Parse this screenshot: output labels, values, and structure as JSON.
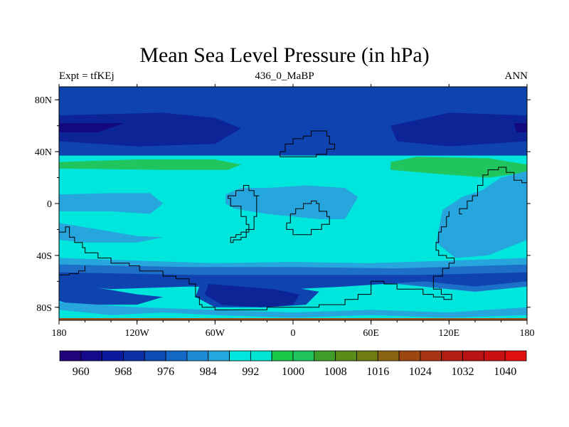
{
  "title": "Mean Sea Level Pressure (in hPa)",
  "left_label": "Expt = tfKEj",
  "center_label": "436_0_MaBP",
  "right_label": "ANN",
  "axes": {
    "x_ticks": [
      {
        "value": -180,
        "label": "180"
      },
      {
        "value": -120,
        "label": "120W"
      },
      {
        "value": -60,
        "label": "60W"
      },
      {
        "value": 0,
        "label": "0"
      },
      {
        "value": 60,
        "label": "60E"
      },
      {
        "value": 120,
        "label": "120E"
      },
      {
        "value": 180,
        "label": "180"
      }
    ],
    "y_ticks": [
      {
        "value": 80,
        "label": "80N"
      },
      {
        "value": 40,
        "label": "40N"
      },
      {
        "value": 0,
        "label": "0"
      },
      {
        "value": -40,
        "label": "40S"
      },
      {
        "value": -80,
        "label": "80S"
      }
    ],
    "lon_range": [
      -180,
      180
    ],
    "lat_range": [
      -90,
      90
    ]
  },
  "colorbar": {
    "colors": [
      "#21047a",
      "#140a8c",
      "#0a1a9a",
      "#0b30a6",
      "#0f4bb5",
      "#1268c4",
      "#1d8bd4",
      "#23a7dc",
      "#00e5dc",
      "#00e4d2",
      "#18c848",
      "#22c45e",
      "#3f9c28",
      "#5a8c1a",
      "#6f7c12",
      "#8a6410",
      "#9c4610",
      "#a83414",
      "#b01e14",
      "#b81414",
      "#c81010",
      "#e01010"
    ],
    "labels": [
      "960",
      "968",
      "976",
      "984",
      "992",
      "1000",
      "1008",
      "1016",
      "1024",
      "1032",
      "1040"
    ]
  },
  "field_colors": {
    "c976": "#0c2496",
    "c984": "#0f44b0",
    "c992": "#1e6fc8",
    "c1000a": "#26a6dc",
    "c1000b": "#00e5dc",
    "c1008": "#21c55d",
    "c1016": "#5a8c1a",
    "top_band": "#21c55d",
    "bottom_band": "#a0521e"
  },
  "regions": [
    {
      "name": "north-low-band",
      "level": "984",
      "polys": [
        [
          [
            -180,
            90
          ],
          [
            180,
            90
          ],
          [
            180,
            35
          ],
          [
            -180,
            35
          ]
        ]
      ]
    },
    {
      "name": "north-low-west",
      "level": "976",
      "polys": [
        [
          [
            -180,
            68
          ],
          [
            -100,
            70
          ],
          [
            -60,
            66
          ],
          [
            -40,
            58
          ],
          [
            -60,
            46
          ],
          [
            -120,
            44
          ],
          [
            -180,
            48
          ]
        ]
      ]
    },
    {
      "name": "north-low-east",
      "level": "976",
      "polys": [
        [
          [
            75,
            60
          ],
          [
            120,
            70
          ],
          [
            180,
            68
          ],
          [
            180,
            48
          ],
          [
            120,
            44
          ],
          [
            80,
            48
          ]
        ]
      ]
    },
    {
      "name": "north-core-west",
      "level": "968",
      "polys": [
        [
          [
            -180,
            62
          ],
          [
            -130,
            62
          ],
          [
            -150,
            55
          ],
          [
            -180,
            55
          ]
        ]
      ]
    },
    {
      "name": "north-core-east",
      "level": "968",
      "polys": [
        [
          [
            170,
            62
          ],
          [
            180,
            62
          ],
          [
            180,
            55
          ],
          [
            172,
            55
          ]
        ]
      ]
    },
    {
      "name": "mid-band",
      "level": "1000b",
      "polys": [
        [
          [
            -180,
            37
          ],
          [
            180,
            37
          ],
          [
            180,
            -50
          ],
          [
            -180,
            -50
          ]
        ]
      ]
    },
    {
      "name": "subtrop-north-west",
      "level": "1008",
      "polys": [
        [
          [
            -180,
            32
          ],
          [
            -120,
            34
          ],
          [
            -60,
            34
          ],
          [
            -40,
            30
          ],
          [
            -50,
            26
          ],
          [
            -100,
            26
          ],
          [
            -180,
            27
          ]
        ]
      ]
    },
    {
      "name": "subtrop-north-east",
      "level": "1008",
      "polys": [
        [
          [
            75,
            32
          ],
          [
            95,
            36
          ],
          [
            150,
            35
          ],
          [
            180,
            30
          ],
          [
            180,
            24
          ],
          [
            150,
            20
          ],
          [
            110,
            23
          ],
          [
            75,
            26
          ]
        ]
      ]
    },
    {
      "name": "eq-west",
      "level": "1000a",
      "polys": [
        [
          [
            -180,
            7
          ],
          [
            -140,
            8
          ],
          [
            -110,
            8
          ],
          [
            -100,
            0
          ],
          [
            -110,
            -8
          ],
          [
            -140,
            -6
          ],
          [
            -180,
            -6
          ]
        ]
      ]
    },
    {
      "name": "eq-central",
      "level": "1000a",
      "polys": [
        [
          [
            -52,
            7
          ],
          [
            -40,
            12
          ],
          [
            -20,
            12
          ],
          [
            10,
            14
          ],
          [
            40,
            12
          ],
          [
            50,
            5
          ],
          [
            40,
            -12
          ],
          [
            20,
            -12
          ],
          [
            -20,
            -8
          ],
          [
            -45,
            -4
          ],
          [
            -52,
            0
          ]
        ]
      ]
    },
    {
      "name": "eq-africa",
      "level": "1000a",
      "polys": [
        [
          [
            -10,
            -2
          ],
          [
            0,
            5
          ],
          [
            20,
            8
          ],
          [
            30,
            4
          ],
          [
            30,
            -8
          ],
          [
            10,
            -10
          ]
        ]
      ]
    },
    {
      "name": "eq-west-pacific",
      "level": "1000a",
      "polys": [
        [
          [
            110,
            -30
          ],
          [
            115,
            -5
          ],
          [
            130,
            5
          ],
          [
            145,
            10
          ],
          [
            160,
            20
          ],
          [
            180,
            25
          ],
          [
            180,
            -28
          ],
          [
            150,
            -40
          ],
          [
            125,
            -42
          ]
        ]
      ]
    },
    {
      "name": "sub-south-west",
      "level": "1000a",
      "polys": [
        [
          [
            -180,
            -15
          ],
          [
            -150,
            -20
          ],
          [
            -120,
            -25
          ],
          [
            -100,
            -26
          ],
          [
            -120,
            -30
          ],
          [
            -160,
            -30
          ],
          [
            -180,
            -28
          ]
        ]
      ]
    },
    {
      "name": "south-band-outer",
      "level": "1000a",
      "polys": [
        [
          [
            -180,
            -42
          ],
          [
            -120,
            -44
          ],
          [
            -60,
            -46
          ],
          [
            0,
            -45
          ],
          [
            60,
            -46
          ],
          [
            120,
            -44
          ],
          [
            180,
            -42
          ],
          [
            180,
            -52
          ],
          [
            -180,
            -52
          ]
        ]
      ]
    },
    {
      "name": "south-band",
      "level": "992",
      "polys": [
        [
          [
            -180,
            -47
          ],
          [
            -80,
            -49
          ],
          [
            0,
            -49
          ],
          [
            80,
            -50
          ],
          [
            180,
            -47
          ],
          [
            180,
            -64
          ],
          [
            140,
            -68
          ],
          [
            100,
            -64
          ],
          [
            80,
            -62
          ],
          [
            0,
            -62
          ],
          [
            -80,
            -62
          ],
          [
            -180,
            -64
          ]
        ]
      ]
    },
    {
      "name": "south-low-band",
      "level": "984",
      "polys": [
        [
          [
            -180,
            -53
          ],
          [
            -80,
            -55
          ],
          [
            0,
            -55
          ],
          [
            100,
            -55
          ],
          [
            180,
            -53
          ],
          [
            180,
            -60
          ],
          [
            140,
            -64
          ],
          [
            100,
            -60
          ],
          [
            40,
            -64
          ],
          [
            0,
            -66
          ],
          [
            -80,
            -64
          ],
          [
            -140,
            -66
          ],
          [
            -180,
            -62
          ]
        ]
      ]
    },
    {
      "name": "south-low-west",
      "level": "984",
      "polys": [
        [
          [
            -180,
            -60
          ],
          [
            -150,
            -65
          ],
          [
            -120,
            -70
          ],
          [
            -100,
            -72
          ],
          [
            -120,
            -78
          ],
          [
            -170,
            -78
          ],
          [
            -180,
            -75
          ]
        ]
      ]
    },
    {
      "name": "south-low-sa",
      "level": "984",
      "polys": [
        [
          [
            -70,
            -58
          ],
          [
            -40,
            -60
          ],
          [
            -10,
            -63
          ],
          [
            20,
            -68
          ],
          [
            10,
            -78
          ],
          [
            -20,
            -80
          ],
          [
            -60,
            -80
          ],
          [
            -75,
            -72
          ]
        ]
      ]
    },
    {
      "name": "south-core-sa",
      "level": "976",
      "polys": [
        [
          [
            -65,
            -62
          ],
          [
            -40,
            -64
          ],
          [
            -15,
            -66
          ],
          [
            5,
            -70
          ],
          [
            0,
            -78
          ],
          [
            -25,
            -80
          ],
          [
            -55,
            -78
          ],
          [
            -68,
            -70
          ]
        ]
      ]
    },
    {
      "name": "south-polar-light",
      "level": "1000a",
      "polys": [
        [
          [
            -180,
            -76
          ],
          [
            -120,
            -80
          ],
          [
            -60,
            -82
          ],
          [
            0,
            -84
          ],
          [
            60,
            -82
          ],
          [
            120,
            -84
          ],
          [
            180,
            -80
          ],
          [
            180,
            -90
          ],
          [
            -180,
            -90
          ]
        ]
      ]
    },
    {
      "name": "south-polar-cyan",
      "level": "1000b",
      "polys": [
        [
          [
            -180,
            -82
          ],
          [
            -140,
            -86
          ],
          [
            -100,
            -84
          ],
          [
            -60,
            -86
          ],
          [
            0,
            -88
          ],
          [
            60,
            -86
          ],
          [
            120,
            -88
          ],
          [
            180,
            -86
          ],
          [
            180,
            -90
          ],
          [
            -180,
            -90
          ]
        ]
      ]
    }
  ],
  "coastlines": [
    [
      [
        -180,
        -22
      ],
      [
        -175,
        -18
      ],
      [
        -172,
        -26
      ],
      [
        -168,
        -30
      ],
      [
        -162,
        -34
      ],
      [
        -160,
        -38
      ],
      [
        -150,
        -42
      ],
      [
        -140,
        -46
      ],
      [
        -126,
        -48
      ],
      [
        -118,
        -52
      ],
      [
        -108,
        -52
      ],
      [
        -100,
        -56
      ],
      [
        -90,
        -58
      ],
      [
        -80,
        -62
      ],
      [
        -75,
        -72
      ],
      [
        -72,
        -78
      ],
      [
        -70,
        -80
      ],
      [
        -60,
        -82
      ],
      [
        -20,
        -80
      ],
      [
        0,
        -80
      ],
      [
        20,
        -78
      ],
      [
        40,
        -74
      ],
      [
        50,
        -70
      ],
      [
        60,
        -60
      ],
      [
        70,
        -62
      ],
      [
        80,
        -66
      ],
      [
        90,
        -66
      ],
      [
        100,
        -70
      ],
      [
        108,
        -72
      ],
      [
        116,
        -74
      ],
      [
        122,
        -74
      ],
      [
        122,
        -70
      ],
      [
        114,
        -66
      ],
      [
        108,
        -56
      ],
      [
        115,
        -50
      ],
      [
        120,
        -46
      ],
      [
        124,
        -42
      ],
      [
        118,
        -40
      ],
      [
        112,
        -36
      ],
      [
        110,
        -30
      ],
      [
        112,
        -22
      ],
      [
        114,
        -18
      ],
      [
        118,
        -10
      ],
      [
        120,
        -6
      ]
    ],
    [
      [
        -40,
        -22
      ],
      [
        -34,
        -16
      ],
      [
        -36,
        -10
      ],
      [
        -40,
        -2
      ],
      [
        -48,
        4
      ],
      [
        -50,
        6
      ],
      [
        -44,
        10
      ],
      [
        -38,
        14
      ],
      [
        -34,
        10
      ],
      [
        -30,
        6
      ],
      [
        -26,
        6
      ],
      [
        -28,
        0
      ],
      [
        -28,
        -10
      ],
      [
        -30,
        -20
      ],
      [
        -36,
        -26
      ],
      [
        -40,
        -28
      ],
      [
        -46,
        -30
      ],
      [
        -48,
        -26
      ],
      [
        -44,
        -24
      ],
      [
        -40,
        -22
      ]
    ],
    [
      [
        -5,
        -15
      ],
      [
        -2,
        -8
      ],
      [
        2,
        -4
      ],
      [
        8,
        0
      ],
      [
        14,
        2
      ],
      [
        18,
        0
      ],
      [
        20,
        -6
      ],
      [
        26,
        -10
      ],
      [
        28,
        -16
      ],
      [
        22,
        -20
      ],
      [
        14,
        -24
      ],
      [
        6,
        -24
      ],
      [
        0,
        -20
      ],
      [
        -5,
        -15
      ]
    ],
    [
      [
        -10,
        40
      ],
      [
        -6,
        46
      ],
      [
        0,
        50
      ],
      [
        8,
        52
      ],
      [
        14,
        56
      ],
      [
        20,
        56
      ],
      [
        26,
        52
      ],
      [
        28,
        46
      ],
      [
        32,
        42
      ],
      [
        26,
        38
      ],
      [
        18,
        36
      ],
      [
        10,
        36
      ],
      [
        0,
        36
      ],
      [
        -6,
        36
      ],
      [
        -10,
        40
      ]
    ],
    [
      [
        130,
        -8
      ],
      [
        128,
        -4
      ],
      [
        134,
        2
      ],
      [
        138,
        6
      ],
      [
        142,
        14
      ],
      [
        146,
        22
      ],
      [
        150,
        26
      ],
      [
        158,
        28
      ],
      [
        164,
        24
      ],
      [
        170,
        18
      ],
      [
        176,
        16
      ],
      [
        180,
        14
      ]
    ],
    [
      [
        -180,
        -55
      ],
      [
        -172,
        -54
      ],
      [
        -165,
        -52
      ],
      [
        -160,
        -48
      ]
    ]
  ]
}
